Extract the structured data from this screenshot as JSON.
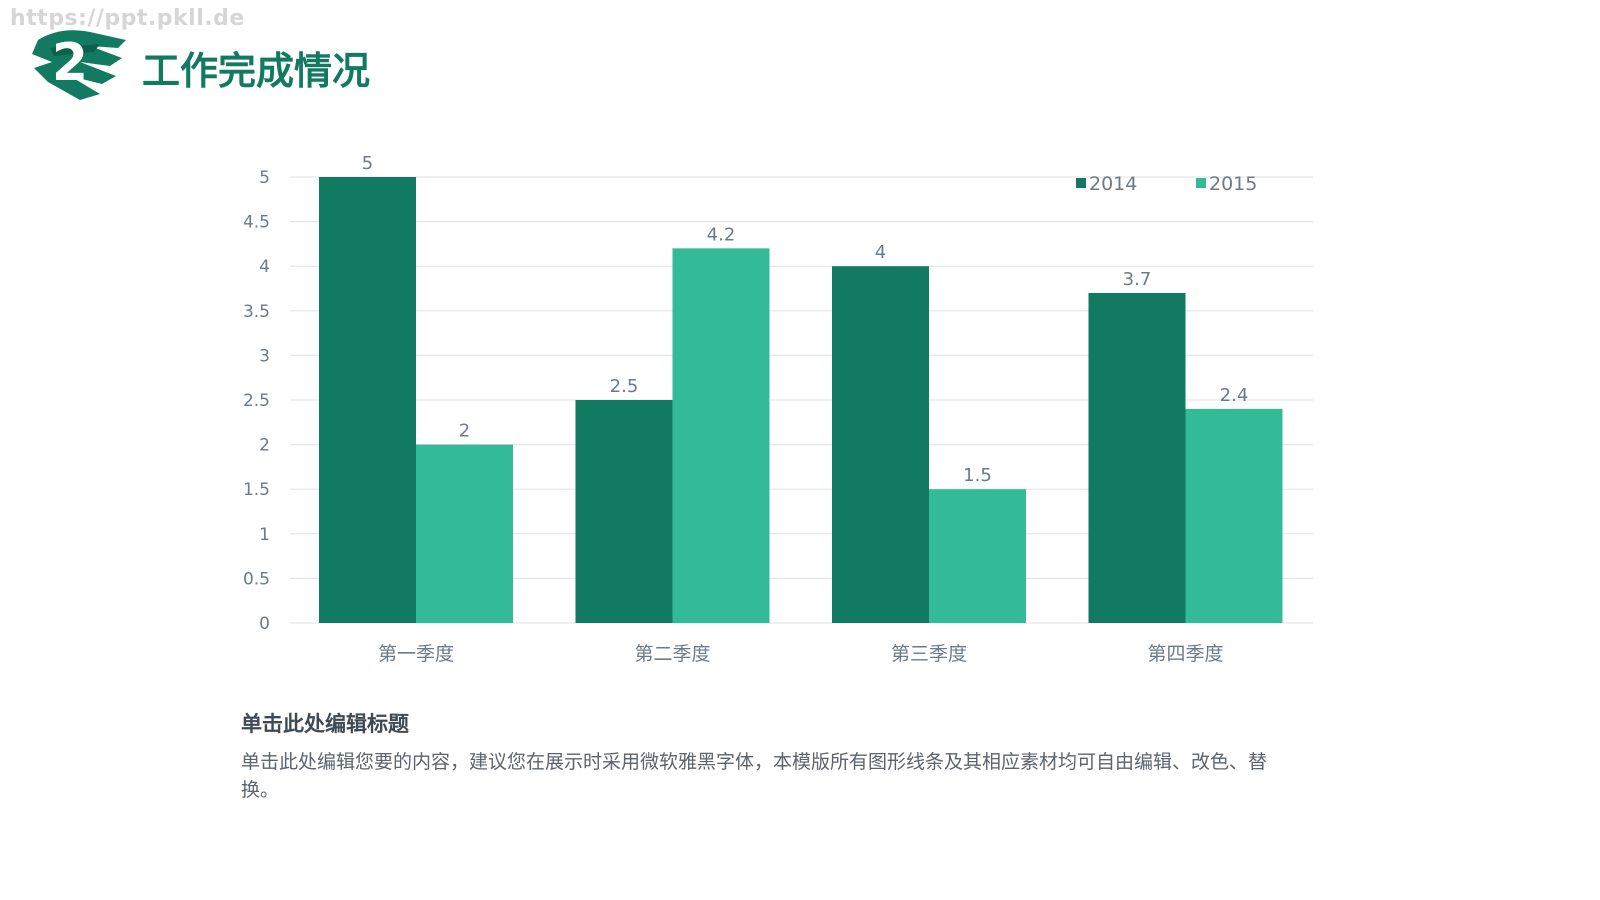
{
  "watermark": "https://ppt.pkll.de",
  "header": {
    "badge_number": "2",
    "title": "工作完成情况"
  },
  "colors": {
    "accent_dark": "#137a62",
    "accent_light": "#33bb97",
    "grid": "#e3e7ea",
    "text": "#6c7a89"
  },
  "chart_data": {
    "type": "bar",
    "categories": [
      "第一季度",
      "第二季度",
      "第三季度",
      "第四季度"
    ],
    "series": [
      {
        "name": "2014",
        "values": [
          5,
          2.5,
          4,
          3.7
        ],
        "color": "#137a62"
      },
      {
        "name": "2015",
        "values": [
          2,
          4.2,
          1.5,
          2.4
        ],
        "color": "#33bb97"
      }
    ],
    "yticks": [
      "0",
      "0.5",
      "1",
      "1.5",
      "2",
      "2.5",
      "3",
      "3.5",
      "4",
      "4.5",
      "5"
    ],
    "ylim": [
      0,
      5
    ],
    "grid": true,
    "legend_position": "top-right",
    "data_labels": true
  },
  "caption": {
    "heading": "单击此处编辑标题",
    "body": "单击此处编辑您要的内容，建议您在展示时采用微软雅黑字体，本模版所有图形线条及其相应素材均可自由编辑、改色、替换。"
  }
}
